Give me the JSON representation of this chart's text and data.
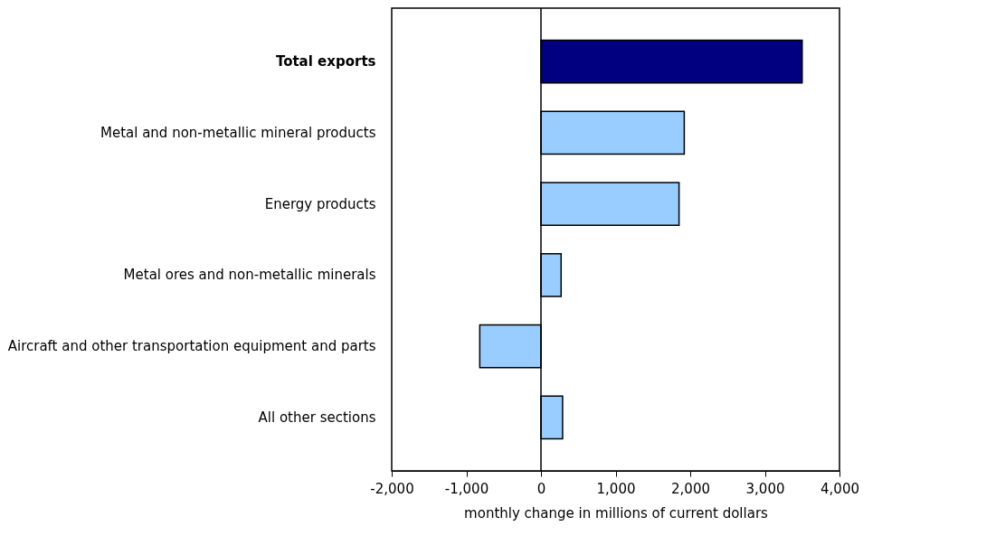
{
  "chart_data": {
    "type": "bar",
    "orientation": "horizontal",
    "xlabel": "monthly change in millions of current dollars",
    "categories": [
      "Total exports",
      "Metal and non-metallic mineral products",
      "Energy products",
      "Metal ores and non-metallic minerals",
      "Aircraft and other transportation equipment and parts",
      "All other sections"
    ],
    "values": [
      3500,
      1920,
      1850,
      270,
      -820,
      290
    ],
    "colors": [
      "#000080",
      "#99ccff",
      "#99ccff",
      "#99ccff",
      "#99ccff",
      "#99ccff"
    ],
    "xlim": [
      -2000,
      4000
    ],
    "xticks": [
      {
        "value": -2000,
        "label": "-2,000"
      },
      {
        "value": -1000,
        "label": "-1,000"
      },
      0,
      {
        "value": 1000,
        "label": "1,000"
      },
      {
        "value": 2000,
        "label": "2,000"
      },
      {
        "value": 3000,
        "label": "3,000"
      },
      {
        "value": 4000,
        "label": "4,000"
      }
    ],
    "ref_lines": [
      {
        "axis": "x",
        "value": 0,
        "color": "#000000"
      }
    ],
    "grid": false
  }
}
